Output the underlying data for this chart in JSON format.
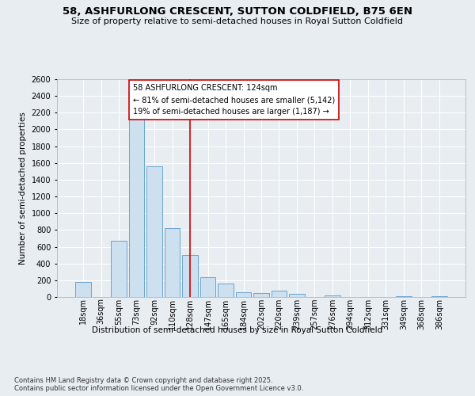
{
  "title": "58, ASHFURLONG CRESCENT, SUTTON COLDFIELD, B75 6EN",
  "subtitle": "Size of property relative to semi-detached houses in Royal Sutton Coldfield",
  "xlabel": "Distribution of semi-detached houses by size in Royal Sutton Coldfield",
  "ylabel": "Number of semi-detached properties",
  "categories": [
    "18sqm",
    "36sqm",
    "55sqm",
    "73sqm",
    "92sqm",
    "110sqm",
    "128sqm",
    "147sqm",
    "165sqm",
    "184sqm",
    "202sqm",
    "220sqm",
    "239sqm",
    "257sqm",
    "276sqm",
    "294sqm",
    "312sqm",
    "331sqm",
    "349sqm",
    "368sqm",
    "386sqm"
  ],
  "values": [
    180,
    0,
    670,
    2130,
    1560,
    820,
    500,
    240,
    160,
    60,
    50,
    80,
    35,
    0,
    15,
    0,
    0,
    0,
    5,
    0,
    10
  ],
  "bar_color": "#cce0f0",
  "bar_edge_color": "#5a9ac8",
  "vline_color": "#cc0000",
  "vline_index": 6,
  "annotation_line1": "58 ASHFURLONG CRESCENT: 124sqm",
  "annotation_line2": "← 81% of semi-detached houses are smaller (5,142)",
  "annotation_line3": "19% of semi-detached houses are larger (1,187) →",
  "annotation_box_facecolor": "#ffffff",
  "annotation_box_edgecolor": "#cc0000",
  "ylim_max": 2600,
  "ytick_step": 200,
  "background_color": "#e8edf2",
  "footer_line1": "Contains HM Land Registry data © Crown copyright and database right 2025.",
  "footer_line2": "Contains public sector information licensed under the Open Government Licence v3.0.",
  "title_fontsize": 9.5,
  "subtitle_fontsize": 8,
  "axis_label_fontsize": 7.5,
  "tick_fontsize": 7,
  "annotation_fontsize": 7,
  "footer_fontsize": 6
}
